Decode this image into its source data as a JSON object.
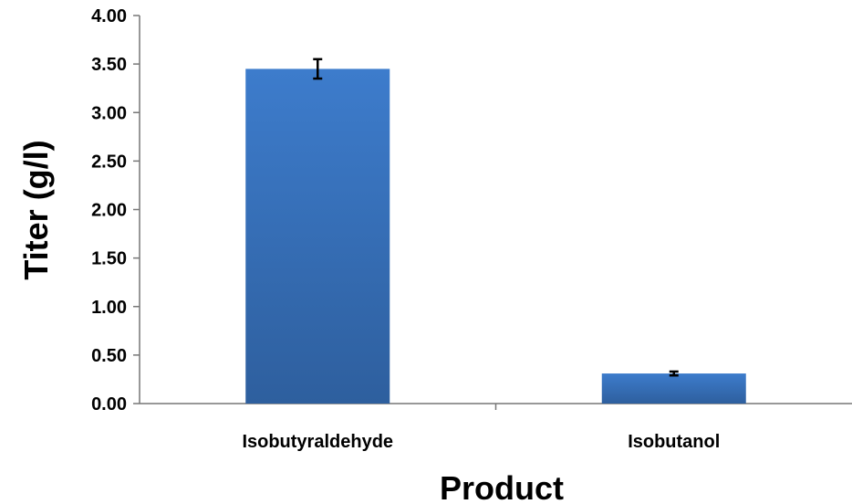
{
  "chart_data": {
    "type": "bar",
    "categories": [
      "Isobutyraldehyde",
      "Isobutanol"
    ],
    "series": [
      {
        "values": [
          3.45,
          0.31
        ],
        "errors": [
          0.1,
          0.02
        ],
        "color_top": "#3d7ccc",
        "color_bottom": "#2e5f9e"
      }
    ],
    "xlabel": "Product",
    "ylabel": "Titer (g/l)",
    "ylim": [
      0,
      4
    ],
    "yticks": [
      "0.00",
      "0.50",
      "1.00",
      "1.50",
      "2.00",
      "2.50",
      "3.00",
      "3.50",
      "4.00"
    ],
    "grid": false,
    "legend": "none"
  }
}
